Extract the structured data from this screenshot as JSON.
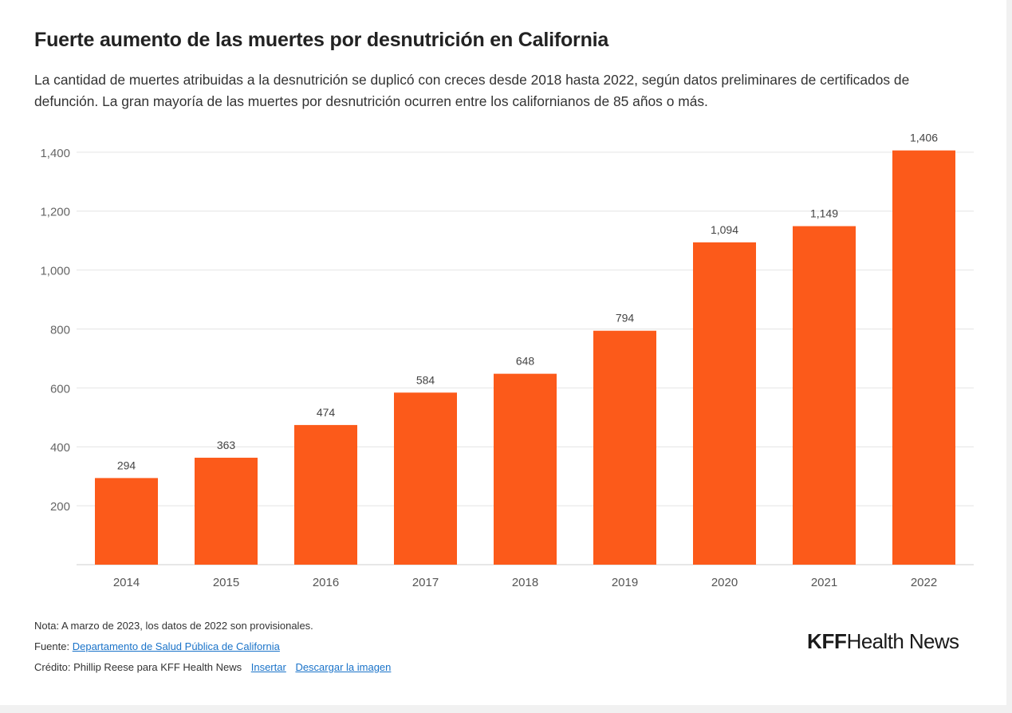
{
  "header": {
    "title": "Fuerte aumento de las muertes por desnutrición en California",
    "subtitle": "La cantidad de muertes atribuidas a la desnutrición se duplicó con creces desde 2018 hasta 2022, según datos preliminares de certificados de defunción. La gran mayoría de las muertes por desnutrición ocurren entre los californianos de 85 años o más."
  },
  "chart_data": {
    "type": "bar",
    "categories": [
      "2014",
      "2015",
      "2016",
      "2017",
      "2018",
      "2019",
      "2020",
      "2021",
      "2022"
    ],
    "values": [
      294,
      363,
      474,
      584,
      648,
      794,
      1094,
      1149,
      1406
    ],
    "value_labels": [
      "294",
      "363",
      "474",
      "584",
      "648",
      "794",
      "1,094",
      "1,149",
      "1,406"
    ],
    "ylim": [
      0,
      1400
    ],
    "yticks": [
      200,
      400,
      600,
      800,
      1000,
      1200,
      1400
    ],
    "ytick_labels": [
      "200",
      "400",
      "600",
      "800",
      "1,000",
      "1,200",
      "1,400"
    ],
    "xlabel": "",
    "ylabel": "",
    "grid": true,
    "bar_color": "#fc5a1a"
  },
  "footer": {
    "note": "Nota: A marzo de 2023, los datos de 2022 son provisionales.",
    "source_label": "Fuente:",
    "source_link": "Departamento de Salud Pública de California",
    "credit": "Crédito: Phillip Reese para KFF Health News",
    "embed_link": "Insertar",
    "download_link": "Descargar la imagen",
    "link_color": "#1a73c9"
  },
  "logo": {
    "bold": "KFF",
    "light": "Health News"
  }
}
